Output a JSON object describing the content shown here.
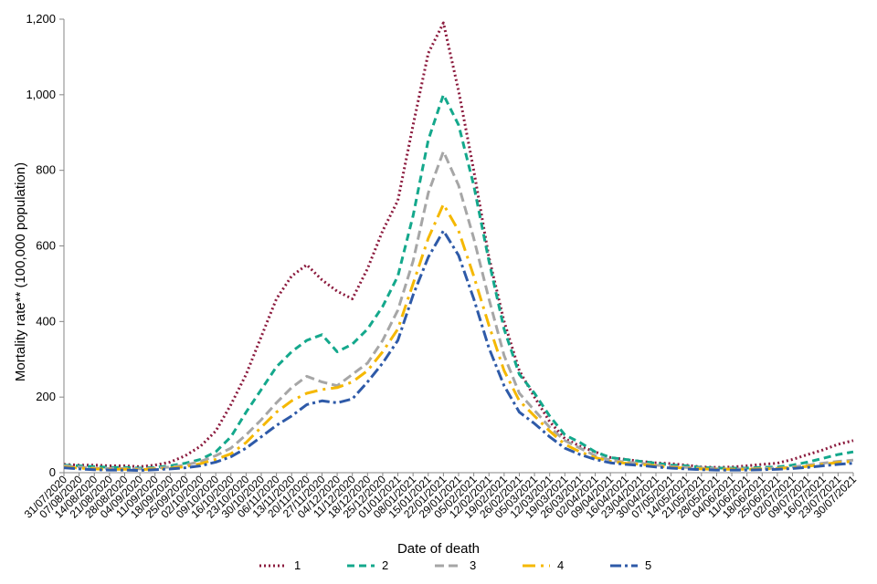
{
  "chart_data": {
    "type": "line",
    "xlabel": "Date of death",
    "ylabel": "Mortality rate** (100,000 population)",
    "ylim": [
      0,
      1200
    ],
    "yticks": [
      "0",
      "200",
      "400",
      "600",
      "800",
      "1,000",
      "1,200"
    ],
    "ytick_values": [
      0,
      200,
      400,
      600,
      800,
      1000,
      1200
    ],
    "grid": false,
    "legend_position": "bottom",
    "categories": [
      "31/07/2020",
      "07/08/2020",
      "14/08/2020",
      "21/08/2020",
      "28/08/2020",
      "04/09/2020",
      "11/09/2020",
      "18/09/2020",
      "25/09/2020",
      "02/10/2020",
      "09/10/2020",
      "16/10/2020",
      "23/10/2020",
      "30/10/2020",
      "06/11/2020",
      "13/11/2020",
      "20/11/2020",
      "27/11/2020",
      "04/12/2020",
      "11/12/2020",
      "18/12/2020",
      "25/12/2020",
      "01/01/2021",
      "08/01/2021",
      "15/01/2021",
      "22/01/2021",
      "29/01/2021",
      "05/02/2021",
      "12/02/2021",
      "19/02/2021",
      "26/02/2021",
      "05/03/2021",
      "12/03/2021",
      "19/03/2021",
      "26/03/2021",
      "02/04/2021",
      "09/04/2021",
      "16/04/2021",
      "23/04/2021",
      "30/04/2021",
      "07/05/2021",
      "14/05/2021",
      "21/05/2021",
      "28/05/2021",
      "04/06/2021",
      "11/06/2021",
      "18/06/2021",
      "25/06/2021",
      "02/07/2021",
      "09/07/2021",
      "16/07/2021",
      "23/07/2021",
      "30/07/2021"
    ],
    "series": [
      {
        "name": "1",
        "color": "#8b1a3d",
        "dash": "2,3",
        "values": [
          22,
          20,
          20,
          18,
          18,
          16,
          20,
          28,
          45,
          70,
          110,
          180,
          260,
          360,
          460,
          520,
          550,
          510,
          480,
          460,
          540,
          640,
          720,
          920,
          1110,
          1190,
          1010,
          800,
          570,
          400,
          270,
          200,
          135,
          90,
          70,
          55,
          40,
          35,
          30,
          26,
          24,
          20,
          15,
          14,
          15,
          18,
          22,
          25,
          35,
          48,
          60,
          75,
          85
        ]
      },
      {
        "name": "2",
        "color": "#14a88c",
        "dash": "8,5",
        "values": [
          20,
          18,
          16,
          14,
          14,
          12,
          14,
          18,
          25,
          35,
          55,
          95,
          160,
          220,
          280,
          320,
          350,
          365,
          320,
          340,
          380,
          440,
          520,
          680,
          880,
          1000,
          920,
          760,
          560,
          380,
          260,
          210,
          150,
          100,
          80,
          55,
          40,
          35,
          30,
          25,
          20,
          18,
          14,
          12,
          12,
          12,
          14,
          15,
          20,
          28,
          38,
          48,
          55
        ]
      },
      {
        "name": "3",
        "color": "#a6a6a6",
        "dash": "10,5",
        "values": [
          18,
          15,
          12,
          11,
          11,
          10,
          12,
          15,
          20,
          30,
          45,
          65,
          100,
          140,
          185,
          225,
          255,
          240,
          230,
          260,
          290,
          350,
          430,
          560,
          740,
          850,
          760,
          620,
          460,
          310,
          210,
          165,
          120,
          85,
          65,
          45,
          33,
          28,
          25,
          20,
          16,
          14,
          12,
          10,
          10,
          10,
          11,
          12,
          15,
          20,
          25,
          30,
          33
        ]
      },
      {
        "name": "4",
        "color": "#f5b800",
        "dash": "14,6,3,6",
        "values": [
          15,
          12,
          10,
          9,
          9,
          8,
          10,
          12,
          16,
          24,
          35,
          50,
          80,
          120,
          160,
          190,
          210,
          220,
          225,
          240,
          270,
          320,
          380,
          500,
          620,
          710,
          640,
          520,
          390,
          270,
          190,
          150,
          110,
          75,
          55,
          40,
          30,
          25,
          22,
          18,
          14,
          12,
          10,
          9,
          9,
          9,
          10,
          11,
          13,
          17,
          22,
          27,
          30
        ]
      },
      {
        "name": "5",
        "color": "#2e5aa8",
        "dash": "12,4,3,4",
        "values": [
          13,
          10,
          8,
          7,
          7,
          6,
          8,
          10,
          13,
          18,
          28,
          42,
          65,
          95,
          125,
          150,
          180,
          190,
          185,
          195,
          240,
          290,
          350,
          470,
          570,
          640,
          575,
          460,
          330,
          230,
          160,
          130,
          95,
          65,
          48,
          35,
          26,
          22,
          19,
          15,
          12,
          10,
          8,
          7,
          7,
          7,
          8,
          9,
          11,
          14,
          18,
          22,
          25
        ]
      }
    ]
  }
}
